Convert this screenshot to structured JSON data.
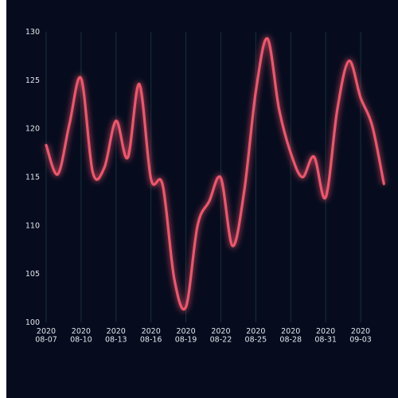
{
  "chart_data": {
    "type": "line",
    "title": "",
    "xlabel": "",
    "ylabel": "",
    "ylim": [
      100,
      130
    ],
    "y_ticks": [
      100,
      105,
      110,
      115,
      120,
      125,
      130
    ],
    "x_ticks": [
      {
        "date": "2020-08-07",
        "line1": "2020",
        "line2": "08-07"
      },
      {
        "date": "2020-08-10",
        "line1": "2020",
        "line2": "08-10"
      },
      {
        "date": "2020-08-13",
        "line1": "2020",
        "line2": "08-13"
      },
      {
        "date": "2020-08-16",
        "line1": "2020",
        "line2": "08-16"
      },
      {
        "date": "2020-08-19",
        "line1": "2020",
        "line2": "08-19"
      },
      {
        "date": "2020-08-22",
        "line1": "2020",
        "line2": "08-22"
      },
      {
        "date": "2020-08-25",
        "line1": "2020",
        "line2": "08-25"
      },
      {
        "date": "2020-08-28",
        "line1": "2020",
        "line2": "08-28"
      },
      {
        "date": "2020-08-31",
        "line1": "2020",
        "line2": "08-31"
      },
      {
        "date": "2020-09-03",
        "line1": "2020",
        "line2": "09-03"
      }
    ],
    "grid": {
      "vertical": true,
      "horizontal": false
    },
    "line_color": "#f0556b",
    "background": "#060c1e",
    "series": [
      {
        "x": [
          "2020-08-07",
          "2020-08-08",
          "2020-08-09",
          "2020-08-10",
          "2020-08-11",
          "2020-08-12",
          "2020-08-13",
          "2020-08-14",
          "2020-08-15",
          "2020-08-16",
          "2020-08-17",
          "2020-08-18",
          "2020-08-19",
          "2020-08-20",
          "2020-08-21",
          "2020-08-22",
          "2020-08-23",
          "2020-08-24",
          "2020-08-25",
          "2020-08-26",
          "2020-08-27",
          "2020-08-28",
          "2020-08-29",
          "2020-08-30",
          "2020-08-31",
          "2020-09-01",
          "2020-09-02",
          "2020-09-03",
          "2020-09-04",
          "2020-09-05"
        ],
        "values": [
          118.3,
          115.3,
          120.5,
          125.2,
          115.5,
          116.0,
          120.8,
          117.0,
          124.6,
          114.8,
          114.2,
          104.5,
          101.6,
          110.0,
          112.5,
          114.9,
          107.9,
          113.5,
          123.8,
          129.3,
          122.0,
          117.5,
          115.0,
          117.1,
          112.9,
          122.0,
          127.0,
          123.2,
          120.3,
          114.3
        ]
      }
    ]
  }
}
